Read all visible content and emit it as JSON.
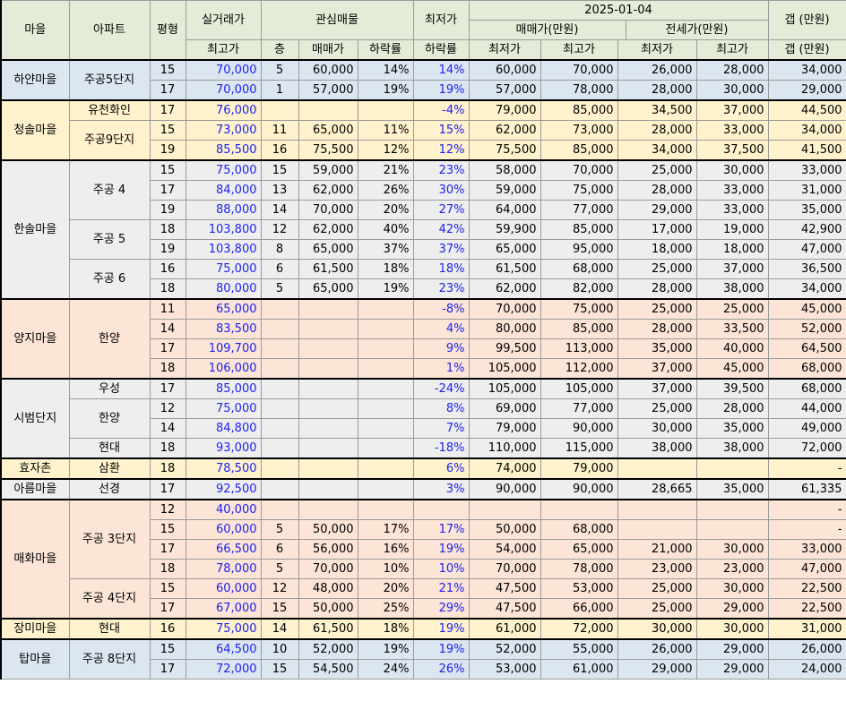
{
  "colors": {
    "header_bg": "#e4ecd7",
    "blue_group": "#dce6f1",
    "yellow_group": "#fff2cc",
    "gray_group": "#eeeeee",
    "pink_group": "#fce4d6",
    "blue_text": "#1d22ee"
  },
  "header": {
    "village": "마을",
    "apartment": "아파트",
    "pyeong": "평형",
    "real_trade": "실거래가",
    "real_trade_sub": "최고가",
    "interest": "관심매물",
    "floor": "층",
    "sale_price": "매매가",
    "drop_rate": "하락률",
    "lowest_price": "최저가",
    "lowest_drop": "하락률",
    "date": "2025-01-04",
    "sale_range": "매매가(만원)",
    "jeonse_range": "전세가(만원)",
    "min": "최저가",
    "max": "최고가",
    "gap": "갭 (만원)",
    "gap_sub": "갭 (만원)"
  },
  "groups": [
    {
      "village": "하얀마을",
      "color": "blue",
      "apartments": [
        {
          "name": "주공5단지",
          "rows": [
            {
              "py": "15",
              "hi": "70,000",
              "fl": "5",
              "sp": "60,000",
              "dr": "14%",
              "ld": "14%",
              "smin": "60,000",
              "smax": "70,000",
              "jmin": "26,000",
              "jmax": "28,000",
              "gap": "34,000"
            },
            {
              "py": "17",
              "hi": "70,000",
              "fl": "1",
              "sp": "57,000",
              "dr": "19%",
              "ld": "19%",
              "smin": "57,000",
              "smax": "78,000",
              "jmin": "28,000",
              "jmax": "30,000",
              "gap": "29,000"
            }
          ]
        }
      ]
    },
    {
      "village": "청솔마을",
      "color": "yellow",
      "apartments": [
        {
          "name": "유천화인",
          "rows": [
            {
              "py": "17",
              "hi": "76,000",
              "fl": "",
              "sp": "",
              "dr": "",
              "ld": "-4%",
              "smin": "79,000",
              "smax": "85,000",
              "jmin": "34,500",
              "jmax": "37,000",
              "gap": "44,500"
            }
          ]
        },
        {
          "name": "주공9단지",
          "rows": [
            {
              "py": "15",
              "hi": "73,000",
              "fl": "11",
              "sp": "65,000",
              "dr": "11%",
              "ld": "15%",
              "smin": "62,000",
              "smax": "73,000",
              "jmin": "28,000",
              "jmax": "33,000",
              "gap": "34,000"
            },
            {
              "py": "19",
              "hi": "85,500",
              "fl": "16",
              "sp": "75,500",
              "dr": "12%",
              "ld": "12%",
              "smin": "75,500",
              "smax": "85,000",
              "jmin": "34,000",
              "jmax": "37,500",
              "gap": "41,500"
            }
          ]
        }
      ]
    },
    {
      "village": "한솔마을",
      "color": "gray",
      "apartments": [
        {
          "name": "주공 4",
          "rows": [
            {
              "py": "15",
              "hi": "75,000",
              "fl": "15",
              "sp": "59,000",
              "dr": "21%",
              "ld": "23%",
              "smin": "58,000",
              "smax": "70,000",
              "jmin": "25,000",
              "jmax": "30,000",
              "gap": "33,000"
            },
            {
              "py": "17",
              "hi": "84,000",
              "fl": "13",
              "sp": "62,000",
              "dr": "26%",
              "ld": "30%",
              "smin": "59,000",
              "smax": "75,000",
              "jmin": "28,000",
              "jmax": "33,000",
              "gap": "31,000"
            },
            {
              "py": "19",
              "hi": "88,000",
              "fl": "14",
              "sp": "70,000",
              "dr": "20%",
              "ld": "27%",
              "smin": "64,000",
              "smax": "77,000",
              "jmin": "29,000",
              "jmax": "33,000",
              "gap": "35,000"
            }
          ]
        },
        {
          "name": "주공 5",
          "rows": [
            {
              "py": "18",
              "hi": "103,800",
              "fl": "12",
              "sp": "62,000",
              "dr": "40%",
              "ld": "42%",
              "smin": "59,900",
              "smax": "85,000",
              "jmin": "17,000",
              "jmax": "19,000",
              "gap": "42,900"
            },
            {
              "py": "19",
              "hi": "103,800",
              "fl": "8",
              "sp": "65,000",
              "dr": "37%",
              "ld": "37%",
              "smin": "65,000",
              "smax": "95,000",
              "jmin": "18,000",
              "jmax": "18,000",
              "gap": "47,000"
            }
          ]
        },
        {
          "name": "주공 6",
          "rows": [
            {
              "py": "16",
              "hi": "75,000",
              "fl": "6",
              "sp": "61,500",
              "dr": "18%",
              "ld": "18%",
              "smin": "61,500",
              "smax": "68,000",
              "jmin": "25,000",
              "jmax": "37,000",
              "gap": "36,500"
            },
            {
              "py": "18",
              "hi": "80,000",
              "fl": "5",
              "sp": "65,000",
              "dr": "19%",
              "ld": "23%",
              "smin": "62,000",
              "smax": "82,000",
              "jmin": "28,000",
              "jmax": "38,000",
              "gap": "34,000"
            }
          ]
        }
      ]
    },
    {
      "village": "양지마을",
      "color": "pink",
      "apartments": [
        {
          "name": "한양",
          "rows": [
            {
              "py": "11",
              "hi": "65,000",
              "fl": "",
              "sp": "",
              "dr": "",
              "ld": "-8%",
              "smin": "70,000",
              "smax": "75,000",
              "jmin": "25,000",
              "jmax": "25,000",
              "gap": "45,000"
            },
            {
              "py": "14",
              "hi": "83,500",
              "fl": "",
              "sp": "",
              "dr": "",
              "ld": "4%",
              "smin": "80,000",
              "smax": "85,000",
              "jmin": "28,000",
              "jmax": "33,500",
              "gap": "52,000"
            },
            {
              "py": "17",
              "hi": "109,700",
              "fl": "",
              "sp": "",
              "dr": "",
              "ld": "9%",
              "smin": "99,500",
              "smax": "113,000",
              "jmin": "35,000",
              "jmax": "40,000",
              "gap": "64,500"
            },
            {
              "py": "18",
              "hi": "106,000",
              "fl": "",
              "sp": "",
              "dr": "",
              "ld": "1%",
              "smin": "105,000",
              "smax": "112,000",
              "jmin": "37,000",
              "jmax": "45,000",
              "gap": "68,000"
            }
          ]
        }
      ]
    },
    {
      "village": "시범단지",
      "color": "gray",
      "apartments": [
        {
          "name": "우성",
          "rows": [
            {
              "py": "17",
              "hi": "85,000",
              "fl": "",
              "sp": "",
              "dr": "",
              "ld": "-24%",
              "smin": "105,000",
              "smax": "105,000",
              "jmin": "37,000",
              "jmax": "39,500",
              "gap": "68,000"
            }
          ]
        },
        {
          "name": "한양",
          "rows": [
            {
              "py": "12",
              "hi": "75,000",
              "fl": "",
              "sp": "",
              "dr": "",
              "ld": "8%",
              "smin": "69,000",
              "smax": "77,000",
              "jmin": "25,000",
              "jmax": "28,000",
              "gap": "44,000"
            },
            {
              "py": "14",
              "hi": "84,800",
              "fl": "",
              "sp": "",
              "dr": "",
              "ld": "7%",
              "smin": "79,000",
              "smax": "90,000",
              "jmin": "30,000",
              "jmax": "35,000",
              "gap": "49,000"
            }
          ]
        },
        {
          "name": "현대",
          "rows": [
            {
              "py": "18",
              "hi": "93,000",
              "fl": "",
              "sp": "",
              "dr": "",
              "ld": "-18%",
              "smin": "110,000",
              "smax": "115,000",
              "jmin": "38,000",
              "jmax": "38,000",
              "gap": "72,000"
            }
          ]
        }
      ]
    },
    {
      "village": "효자촌",
      "color": "yellow",
      "apartments": [
        {
          "name": "삼환",
          "rows": [
            {
              "py": "18",
              "hi": "78,500",
              "fl": "",
              "sp": "",
              "dr": "",
              "ld": "6%",
              "smin": "74,000",
              "smax": "79,000",
              "jmin": "",
              "jmax": "",
              "gap": "-"
            }
          ]
        }
      ]
    },
    {
      "village": "아름마을",
      "color": "gray",
      "apartments": [
        {
          "name": "선경",
          "rows": [
            {
              "py": "17",
              "hi": "92,500",
              "fl": "",
              "sp": "",
              "dr": "",
              "ld": "3%",
              "smin": "90,000",
              "smax": "90,000",
              "jmin": "28,665",
              "jmax": "35,000",
              "gap": "61,335"
            }
          ]
        }
      ]
    },
    {
      "village": "매화마을",
      "color": "pink",
      "apartments": [
        {
          "name": "주공 3단지",
          "rows": [
            {
              "py": "12",
              "hi": "40,000",
              "fl": "",
              "sp": "",
              "dr": "",
              "ld": "",
              "smin": "",
              "smax": "",
              "jmin": "",
              "jmax": "",
              "gap": "-"
            },
            {
              "py": "15",
              "hi": "60,000",
              "fl": "5",
              "sp": "50,000",
              "dr": "17%",
              "ld": "17%",
              "smin": "50,000",
              "smax": "68,000",
              "jmin": "",
              "jmax": "",
              "gap": "-"
            },
            {
              "py": "17",
              "hi": "66,500",
              "fl": "6",
              "sp": "56,000",
              "dr": "16%",
              "ld": "19%",
              "smin": "54,000",
              "smax": "65,000",
              "jmin": "21,000",
              "jmax": "30,000",
              "gap": "33,000"
            },
            {
              "py": "18",
              "hi": "78,000",
              "fl": "5",
              "sp": "70,000",
              "dr": "10%",
              "ld": "10%",
              "smin": "70,000",
              "smax": "78,000",
              "jmin": "23,000",
              "jmax": "23,000",
              "gap": "47,000"
            }
          ]
        },
        {
          "name": "주공 4단지",
          "rows": [
            {
              "py": "15",
              "hi": "60,000",
              "fl": "12",
              "sp": "48,000",
              "dr": "20%",
              "ld": "21%",
              "smin": "47,500",
              "smax": "53,000",
              "jmin": "25,000",
              "jmax": "30,000",
              "gap": "22,500"
            },
            {
              "py": "17",
              "hi": "67,000",
              "fl": "15",
              "sp": "50,000",
              "dr": "25%",
              "ld": "29%",
              "smin": "47,500",
              "smax": "66,000",
              "jmin": "25,000",
              "jmax": "29,000",
              "gap": "22,500"
            }
          ]
        }
      ]
    },
    {
      "village": "장미마을",
      "color": "yellow",
      "apartments": [
        {
          "name": "현대",
          "rows": [
            {
              "py": "16",
              "hi": "75,000",
              "fl": "14",
              "sp": "61,500",
              "dr": "18%",
              "ld": "19%",
              "smin": "61,000",
              "smax": "72,000",
              "jmin": "30,000",
              "jmax": "30,000",
              "gap": "31,000"
            }
          ]
        }
      ]
    },
    {
      "village": "탑마을",
      "color": "blue",
      "apartments": [
        {
          "name": "주공 8단지",
          "rows": [
            {
              "py": "15",
              "hi": "64,500",
              "fl": "10",
              "sp": "52,000",
              "dr": "19%",
              "ld": "19%",
              "smin": "52,000",
              "smax": "55,000",
              "jmin": "26,000",
              "jmax": "29,000",
              "gap": "26,000"
            },
            {
              "py": "17",
              "hi": "72,000",
              "fl": "15",
              "sp": "54,500",
              "dr": "24%",
              "ld": "26%",
              "smin": "53,000",
              "smax": "61,000",
              "jmin": "29,000",
              "jmax": "29,000",
              "gap": "24,000"
            }
          ]
        }
      ]
    }
  ]
}
